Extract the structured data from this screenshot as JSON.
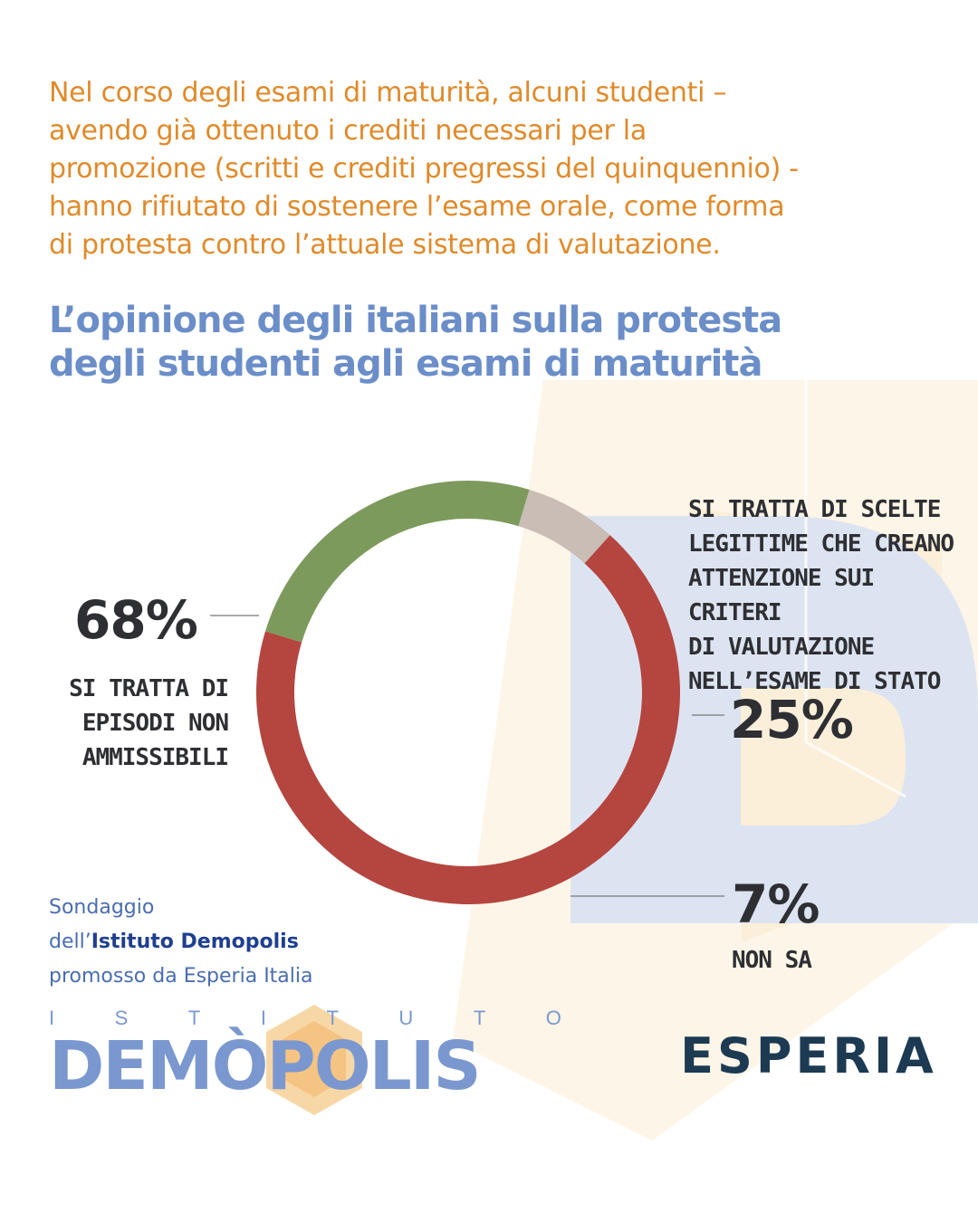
{
  "intro": {
    "lines": [
      "Nel corso degli esami di maturità, alcuni studenti –",
      "avendo già ottenuto i crediti necessari per la",
      "promozione (scritti e crediti pregressi del quinquennio) -",
      "hanno rifiutato di sostenere l’esame orale, come forma",
      "di protesta contro l’attuale sistema di valutazione."
    ]
  },
  "title": {
    "lines": [
      "L’opinione degli italiani sulla protesta",
      "degli studenti agli esami di maturità"
    ]
  },
  "chart_data": {
    "type": "pie",
    "variant": "donut",
    "title": "",
    "slices": [
      {
        "label_lines": [
          "SI TRATTA DI",
          "EPISODI NON",
          "AMMISSIBILI"
        ],
        "value": 68,
        "value_label": "68%",
        "color": "#b5453f"
      },
      {
        "label_lines": [
          "SI TRATTA DI SCELTE",
          "LEGITTIME CHE CREANO",
          "ATTENZIONE SUI CRITERI",
          "DI VALUTAZIONE",
          "NELL’ESAME DI STATO"
        ],
        "value": 25,
        "value_label": "25%",
        "color": "#7c9a5c"
      },
      {
        "label_lines": [
          "NON SA"
        ],
        "value": 7,
        "value_label": "7%",
        "color": "#c9bdb6"
      }
    ],
    "start_angle_deg": 42,
    "direction": "clockwise"
  },
  "source": {
    "line1": "Sondaggio",
    "line2_prefix": "dell’",
    "line2_strong": "Istituto Demopolis",
    "line3": "promosso da Esperia Italia"
  },
  "logo_demopolis": {
    "small": [
      "I",
      "S",
      "T",
      "I",
      "T",
      "U",
      "T",
      "O"
    ],
    "big": "DEMÒPOLIS"
  },
  "logo_esperia": {
    "text": "ESPERIA"
  },
  "colors": {
    "intro_text": "#e08a2a",
    "title_text": "#6b8ec9",
    "dark_text": "#2e2f33",
    "leader_line": "#777777",
    "source_text": "#4a6db0",
    "source_strong": "#1f3f8f",
    "logo_blue": "#7a98cf",
    "logo_dark": "#1c3a52",
    "bg_letter": "#dde4f1",
    "bg_warm": "#fbf0dc"
  }
}
